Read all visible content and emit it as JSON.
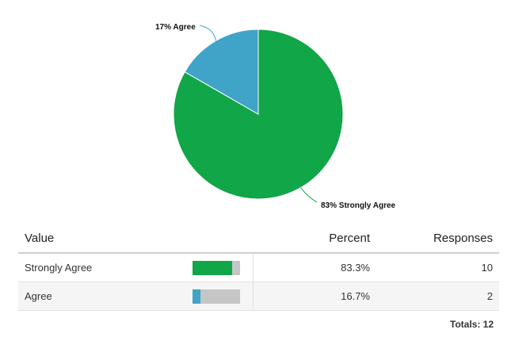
{
  "chart_data": {
    "type": "pie",
    "slices": [
      {
        "label": "83% Strongly Agree",
        "name": "Strongly Agree",
        "value": 83.3,
        "color": "#11a647"
      },
      {
        "label": "17% Agree",
        "name": "Agree",
        "value": 16.7,
        "color": "#40a3c8"
      }
    ]
  },
  "table": {
    "headers": {
      "value": "Value",
      "percent": "Percent",
      "responses": "Responses"
    },
    "rows": [
      {
        "value": "Strongly Agree",
        "percent": "83.3%",
        "responses": "10",
        "fraction": 0.833,
        "color": "#11a647"
      },
      {
        "value": "Agree",
        "percent": "16.7%",
        "responses": "2",
        "fraction": 0.167,
        "color": "#40a3c8"
      }
    ],
    "totals": "Totals: 12"
  }
}
